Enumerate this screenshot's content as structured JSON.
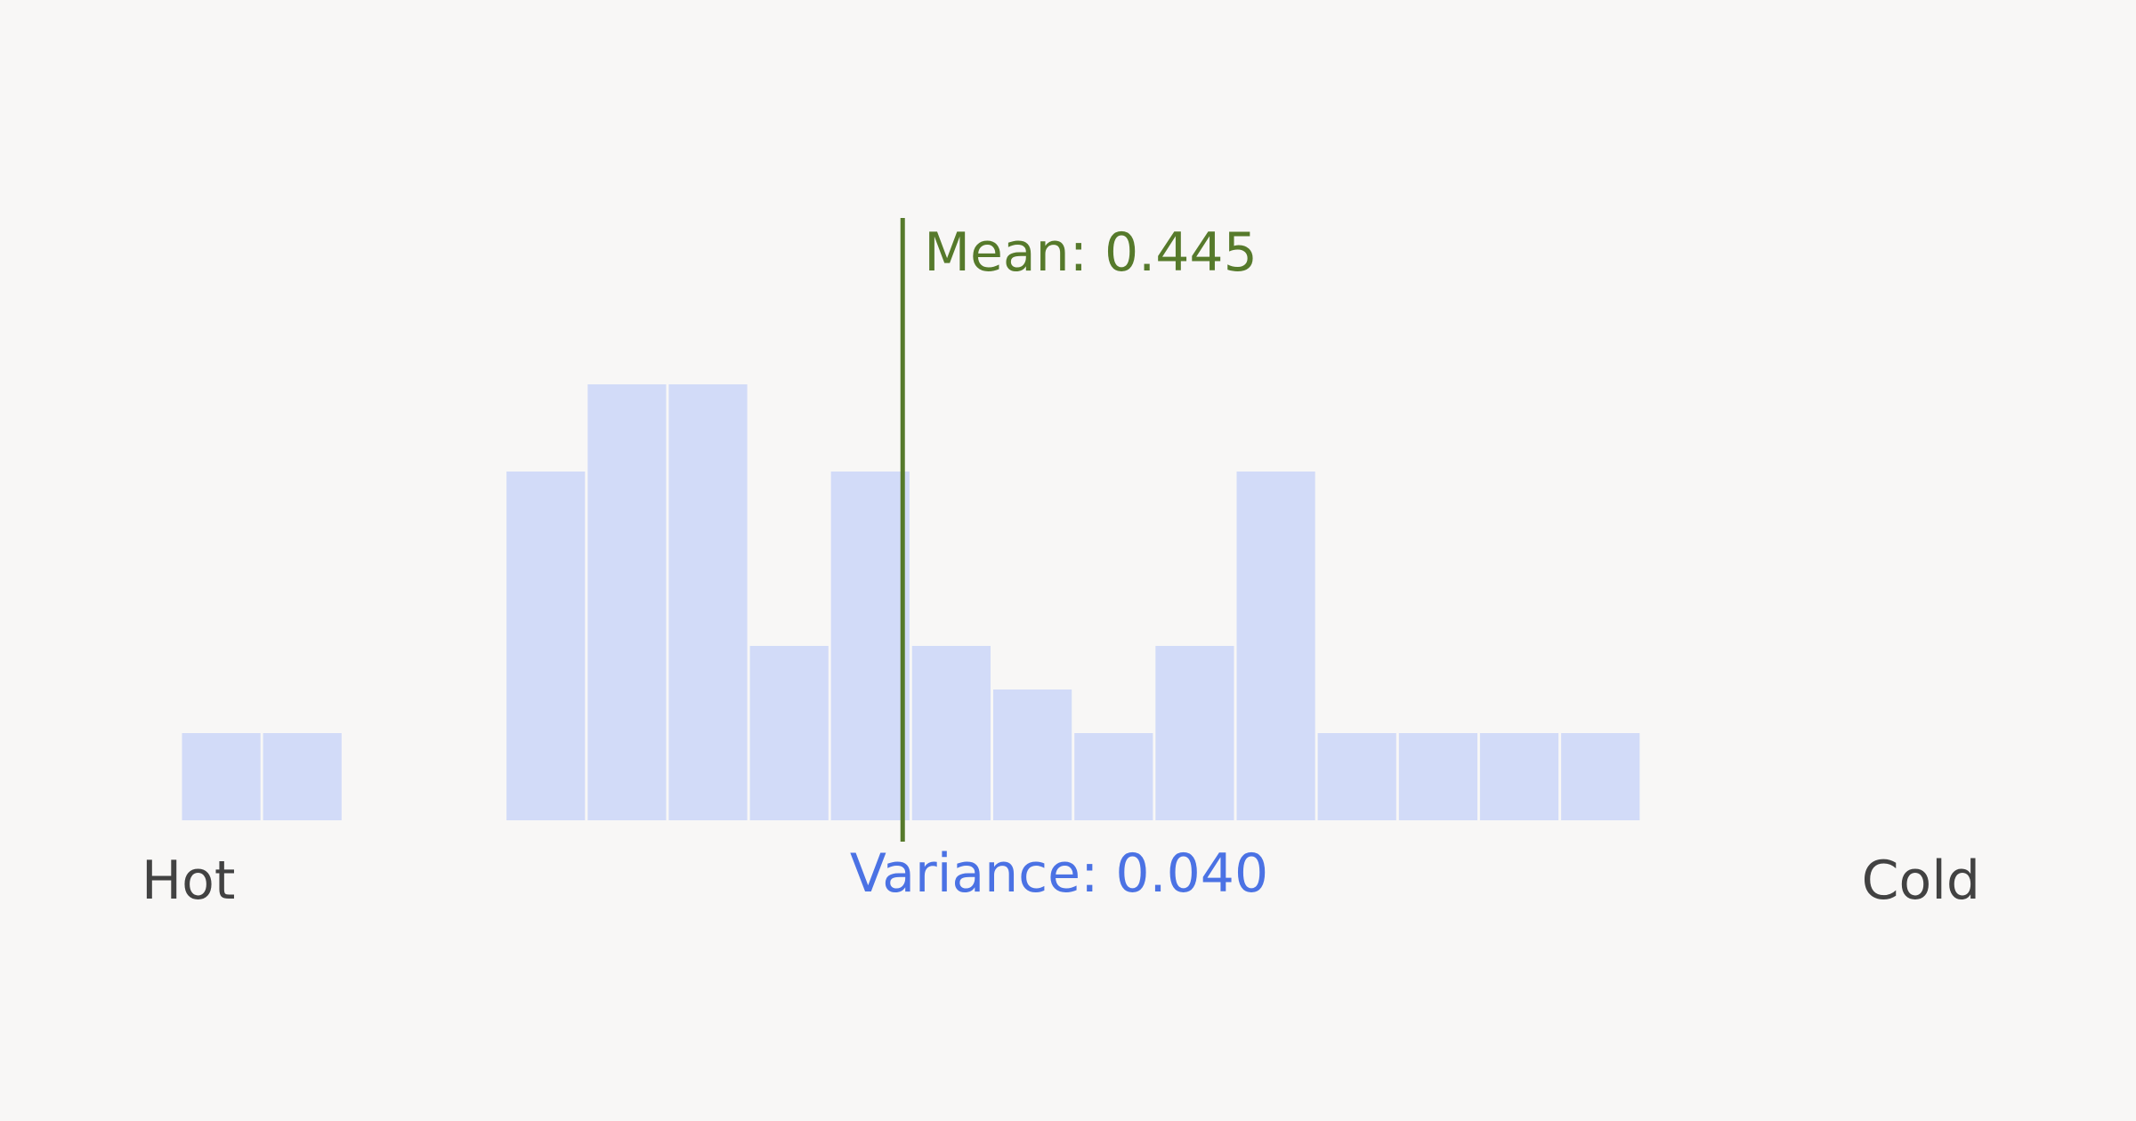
{
  "chart_data": {
    "type": "bar",
    "title": "",
    "xlabel": "",
    "ylabel": "",
    "x_range": [
      0,
      1
    ],
    "bin_count": 20,
    "counts": [
      1,
      1,
      0,
      0,
      4,
      5,
      5,
      2,
      4,
      2,
      1.5,
      1,
      2,
      4,
      1,
      1,
      1,
      1,
      0,
      0
    ],
    "ylim": [
      0,
      5
    ],
    "grid": false,
    "mean": {
      "value": 0.445,
      "label": "Mean: 0.445"
    },
    "variance": {
      "value": 0.04,
      "label": "Variance: 0.040"
    },
    "left_label": "Hot",
    "right_label": "Cold",
    "colors": {
      "bar": "#d2dbf8",
      "mean": "#567a2b",
      "variance": "#4b72e4",
      "end_labels": "#424242",
      "background": "#f8f7f6"
    }
  }
}
